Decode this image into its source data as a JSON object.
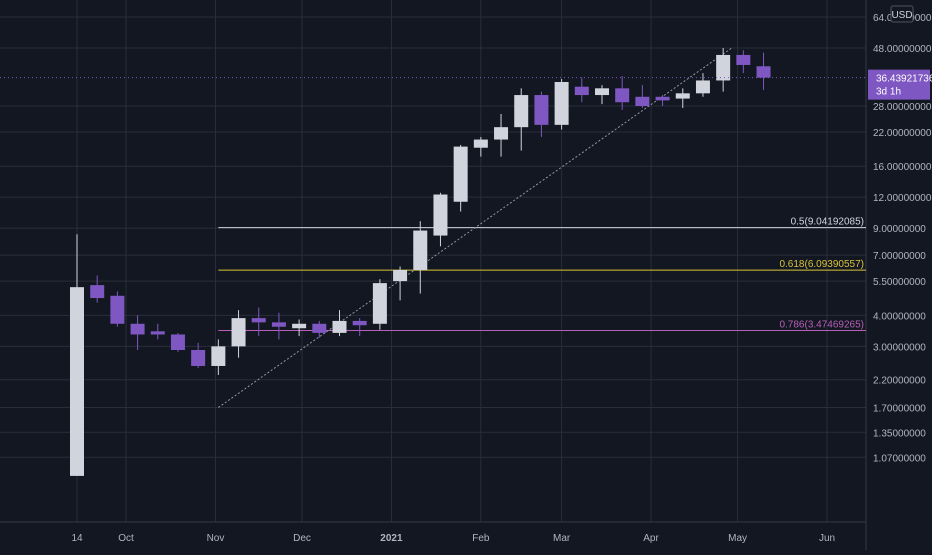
{
  "header": {
    "currency": "USD"
  },
  "price_badge": {
    "value": "36.43921736",
    "countdown": "3d 1h"
  },
  "chart_data": {
    "type": "candlestick",
    "scale": "log",
    "y_axis_ticks": [
      "1.07000000",
      "1.35000000",
      "1.70000000",
      "2.20000000",
      "3.00000000",
      "4.00000000",
      "5.50000000",
      "7.00000000",
      "9.00000000",
      "12.00000000",
      "16.00000000",
      "22.00000000",
      "28.00000000",
      "48.00000000",
      "64.00000000"
    ],
    "y_axis_tick_values": [
      1.07,
      1.35,
      1.7,
      2.2,
      3,
      4,
      5.5,
      7,
      9,
      12,
      16,
      22,
      28,
      48,
      64
    ],
    "x_axis_ticks": [
      {
        "label": "14",
        "date": "2020-09-14"
      },
      {
        "label": "Oct",
        "date": "2020-10-01"
      },
      {
        "label": "Nov",
        "date": "2020-11-01"
      },
      {
        "label": "Dec",
        "date": "2020-12-01"
      },
      {
        "label": "2021",
        "date": "2021-01-01",
        "bold": true
      },
      {
        "label": "Feb",
        "date": "2021-02-01"
      },
      {
        "label": "Mar",
        "date": "2021-03-01"
      },
      {
        "label": "Apr",
        "date": "2021-04-01"
      },
      {
        "label": "May",
        "date": "2021-05-01"
      },
      {
        "label": "Jun",
        "date": "2021-06-01"
      }
    ],
    "candle_interval": "3d",
    "candles": [
      {
        "date": "2020-09-14",
        "o": 0.9,
        "h": 8.5,
        "l": 0.9,
        "c": 5.2
      },
      {
        "date": "2020-09-21",
        "o": 5.3,
        "h": 5.8,
        "l": 4.5,
        "c": 4.7
      },
      {
        "date": "2020-09-28",
        "o": 4.8,
        "h": 5.0,
        "l": 3.6,
        "c": 3.7
      },
      {
        "date": "2020-10-05",
        "o": 3.7,
        "h": 4.0,
        "l": 2.9,
        "c": 3.35
      },
      {
        "date": "2020-10-12",
        "o": 3.45,
        "h": 3.7,
        "l": 3.2,
        "c": 3.35
      },
      {
        "date": "2020-10-19",
        "o": 3.35,
        "h": 3.4,
        "l": 2.85,
        "c": 2.9
      },
      {
        "date": "2020-10-26",
        "o": 2.9,
        "h": 3.1,
        "l": 2.45,
        "c": 2.5
      },
      {
        "date": "2020-11-02",
        "o": 2.5,
        "h": 3.2,
        "l": 2.3,
        "c": 3.0
      },
      {
        "date": "2020-11-09",
        "o": 3.0,
        "h": 4.2,
        "l": 2.7,
        "c": 3.9
      },
      {
        "date": "2020-11-16",
        "o": 3.9,
        "h": 4.3,
        "l": 3.3,
        "c": 3.75
      },
      {
        "date": "2020-11-23",
        "o": 3.75,
        "h": 4.1,
        "l": 3.2,
        "c": 3.6
      },
      {
        "date": "2020-11-30",
        "o": 3.55,
        "h": 3.85,
        "l": 3.3,
        "c": 3.7
      },
      {
        "date": "2020-12-07",
        "o": 3.7,
        "h": 3.8,
        "l": 3.25,
        "c": 3.4
      },
      {
        "date": "2020-12-14",
        "o": 3.4,
        "h": 4.2,
        "l": 3.3,
        "c": 3.8
      },
      {
        "date": "2020-12-21",
        "o": 3.8,
        "h": 3.9,
        "l": 3.3,
        "c": 3.65
      },
      {
        "date": "2020-12-28",
        "o": 3.7,
        "h": 5.6,
        "l": 3.5,
        "c": 5.4
      },
      {
        "date": "2021-01-04",
        "o": 5.5,
        "h": 6.3,
        "l": 4.6,
        "c": 6.1
      },
      {
        "date": "2021-01-11",
        "o": 6.1,
        "h": 9.6,
        "l": 4.9,
        "c": 8.8
      },
      {
        "date": "2021-01-18",
        "o": 8.4,
        "h": 12.5,
        "l": 7.6,
        "c": 12.3
      },
      {
        "date": "2021-01-25",
        "o": 11.5,
        "h": 19.5,
        "l": 10.5,
        "c": 19.2
      },
      {
        "date": "2021-02-01",
        "o": 19.0,
        "h": 21.0,
        "l": 17.5,
        "c": 20.5
      },
      {
        "date": "2021-02-08",
        "o": 20.5,
        "h": 26.0,
        "l": 17.5,
        "c": 23.0
      },
      {
        "date": "2021-02-15",
        "o": 23.0,
        "h": 33.0,
        "l": 18.5,
        "c": 31.0
      },
      {
        "date": "2021-02-22",
        "o": 31.0,
        "h": 32.0,
        "l": 21.0,
        "c": 23.5
      },
      {
        "date": "2021-03-01",
        "o": 23.5,
        "h": 36.0,
        "l": 22.5,
        "c": 35.0
      },
      {
        "date": "2021-03-08",
        "o": 33.5,
        "h": 36.5,
        "l": 29.0,
        "c": 31.0
      },
      {
        "date": "2021-03-15",
        "o": 31.0,
        "h": 34.0,
        "l": 28.5,
        "c": 33.0
      },
      {
        "date": "2021-03-22",
        "o": 33.0,
        "h": 37.0,
        "l": 27.0,
        "c": 29.0
      },
      {
        "date": "2021-03-29",
        "o": 30.5,
        "h": 34.0,
        "l": 27.5,
        "c": 28.0
      },
      {
        "date": "2021-04-05",
        "o": 30.5,
        "h": 31.0,
        "l": 28.0,
        "c": 29.5
      },
      {
        "date": "2021-04-12",
        "o": 30.0,
        "h": 33.0,
        "l": 27.5,
        "c": 31.5
      },
      {
        "date": "2021-04-19",
        "o": 31.5,
        "h": 38.0,
        "l": 30.5,
        "c": 35.5
      },
      {
        "date": "2021-04-26",
        "o": 35.5,
        "h": 48.0,
        "l": 32.0,
        "c": 45.0
      },
      {
        "date": "2021-05-03",
        "o": 45.0,
        "h": 47.0,
        "l": 38.0,
        "c": 41.0
      },
      {
        "date": "2021-05-10",
        "o": 40.5,
        "h": 46.0,
        "l": 32.5,
        "c": 36.44
      }
    ],
    "fibonacci": [
      {
        "level": "0.5",
        "price": 9.04192085,
        "label": "0.5(9.04192085)",
        "color": "#d1d4dc"
      },
      {
        "level": "0.618",
        "price": 6.09390557,
        "label": "0.618(6.09390557)",
        "color": "#d9c43a"
      },
      {
        "level": "0.786",
        "price": 3.47469265,
        "label": "0.786(3.47469265)",
        "color": "#b85fb8"
      }
    ],
    "trend_line": {
      "from": {
        "date": "2020-11-02",
        "price": 1.7
      },
      "to": {
        "date": "2021-04-29",
        "price": 48.0
      }
    },
    "last_price": 36.43921736,
    "colors": {
      "background": "#131722",
      "up": "#d1d4dc",
      "down": "#7e57c2",
      "grid": "#2a2e39",
      "axis_text": "#b2b5be",
      "badge": "#7e57c2"
    }
  }
}
